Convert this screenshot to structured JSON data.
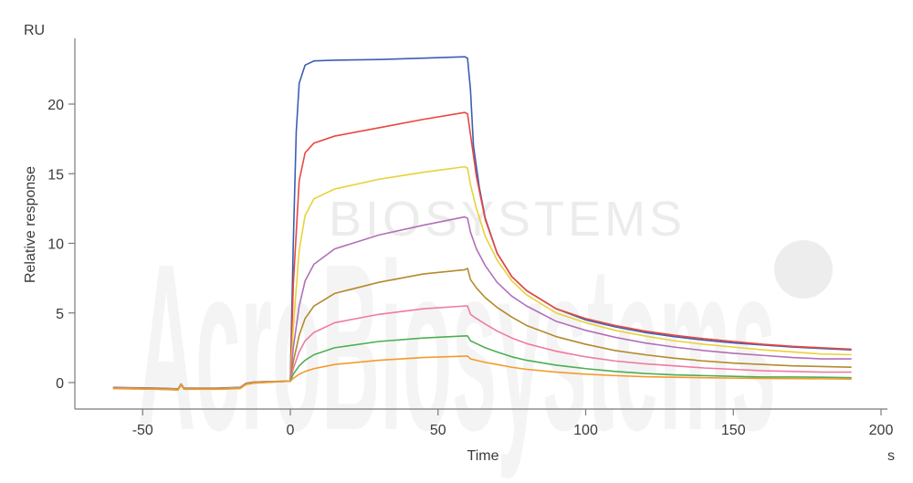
{
  "watermark": {
    "text": "BIOSYSTEMS",
    "logo_text": "AcroBiosystems"
  },
  "chart_data": {
    "type": "line",
    "title": "",
    "xlabel": "Time",
    "ylabel": "Relative response",
    "xunit": "s",
    "yunit": "RU",
    "xlim": [
      -60,
      200
    ],
    "ylim": [
      -0.5,
      24.5
    ],
    "xticks": [
      -50,
      0,
      50,
      100,
      150,
      200
    ],
    "yticks": [
      0,
      5,
      10,
      15,
      20
    ],
    "grid": false,
    "legend": "none",
    "baseline": [
      [
        -60,
        -0.35
      ],
      [
        -45,
        -0.4
      ],
      [
        -38,
        -0.45
      ],
      [
        -37,
        -0.1
      ],
      [
        -36,
        -0.4
      ],
      [
        -25,
        -0.4
      ],
      [
        -17,
        -0.35
      ],
      [
        -15,
        -0.05
      ],
      [
        -12,
        0.05
      ],
      [
        0,
        0.1
      ]
    ],
    "series": [
      {
        "color": "#3a5fb4",
        "values": [
          [
            0,
            0.1
          ],
          [
            1,
            10
          ],
          [
            2,
            18
          ],
          [
            3,
            21.5
          ],
          [
            5,
            22.8
          ],
          [
            8,
            23.1
          ],
          [
            15,
            23.15
          ],
          [
            30,
            23.2
          ],
          [
            45,
            23.3
          ],
          [
            59,
            23.4
          ],
          [
            60,
            23.3
          ],
          [
            61,
            21
          ],
          [
            62,
            17
          ],
          [
            64,
            14
          ],
          [
            66,
            11.8
          ],
          [
            70,
            9.3
          ],
          [
            75,
            7.6
          ],
          [
            80,
            6.6
          ],
          [
            90,
            5.3
          ],
          [
            100,
            4.5
          ],
          [
            110,
            4.0
          ],
          [
            120,
            3.6
          ],
          [
            130,
            3.3
          ],
          [
            140,
            3.05
          ],
          [
            150,
            2.85
          ],
          [
            160,
            2.7
          ],
          [
            170,
            2.55
          ],
          [
            180,
            2.45
          ],
          [
            190,
            2.35
          ]
        ]
      },
      {
        "color": "#e8473f",
        "values": [
          [
            0,
            0.1
          ],
          [
            1,
            7
          ],
          [
            3,
            14.5
          ],
          [
            5,
            16.5
          ],
          [
            8,
            17.2
          ],
          [
            15,
            17.7
          ],
          [
            30,
            18.3
          ],
          [
            45,
            18.9
          ],
          [
            59,
            19.4
          ],
          [
            60,
            19.3
          ],
          [
            61,
            17.8
          ],
          [
            63,
            14.8
          ],
          [
            66,
            11.7
          ],
          [
            70,
            9.3
          ],
          [
            75,
            7.6
          ],
          [
            80,
            6.6
          ],
          [
            90,
            5.3
          ],
          [
            100,
            4.6
          ],
          [
            110,
            4.1
          ],
          [
            120,
            3.7
          ],
          [
            130,
            3.4
          ],
          [
            140,
            3.15
          ],
          [
            150,
            2.95
          ],
          [
            160,
            2.75
          ],
          [
            170,
            2.6
          ],
          [
            180,
            2.5
          ],
          [
            190,
            2.4
          ]
        ]
      },
      {
        "color": "#e8d23a",
        "values": [
          [
            0,
            0.1
          ],
          [
            1,
            4
          ],
          [
            3,
            9.5
          ],
          [
            5,
            12
          ],
          [
            8,
            13.2
          ],
          [
            15,
            13.9
          ],
          [
            30,
            14.6
          ],
          [
            45,
            15.1
          ],
          [
            59,
            15.5
          ],
          [
            60,
            15.4
          ],
          [
            61,
            14.2
          ],
          [
            63,
            12.5
          ],
          [
            66,
            10.5
          ],
          [
            70,
            8.8
          ],
          [
            75,
            7.3
          ],
          [
            80,
            6.3
          ],
          [
            90,
            5.0
          ],
          [
            100,
            4.3
          ],
          [
            110,
            3.75
          ],
          [
            120,
            3.35
          ],
          [
            130,
            3.0
          ],
          [
            140,
            2.75
          ],
          [
            150,
            2.55
          ],
          [
            160,
            2.35
          ],
          [
            170,
            2.2
          ],
          [
            180,
            2.05
          ],
          [
            190,
            2.0
          ]
        ]
      },
      {
        "color": "#b070b8",
        "values": [
          [
            0,
            0.1
          ],
          [
            1,
            2.5
          ],
          [
            3,
            5.5
          ],
          [
            5,
            7.3
          ],
          [
            8,
            8.5
          ],
          [
            15,
            9.6
          ],
          [
            30,
            10.6
          ],
          [
            45,
            11.3
          ],
          [
            59,
            11.9
          ],
          [
            60,
            11.8
          ],
          [
            61,
            10.8
          ],
          [
            63,
            9.6
          ],
          [
            66,
            8.4
          ],
          [
            70,
            7.2
          ],
          [
            75,
            6.2
          ],
          [
            80,
            5.5
          ],
          [
            90,
            4.4
          ],
          [
            100,
            3.75
          ],
          [
            110,
            3.25
          ],
          [
            120,
            2.85
          ],
          [
            130,
            2.55
          ],
          [
            140,
            2.3
          ],
          [
            150,
            2.1
          ],
          [
            160,
            1.95
          ],
          [
            170,
            1.8
          ],
          [
            180,
            1.7
          ],
          [
            190,
            1.7
          ]
        ]
      },
      {
        "color": "#b48a2e",
        "values": [
          [
            0,
            0.1
          ],
          [
            1,
            1.5
          ],
          [
            3,
            3.4
          ],
          [
            5,
            4.6
          ],
          [
            8,
            5.5
          ],
          [
            15,
            6.4
          ],
          [
            30,
            7.2
          ],
          [
            45,
            7.8
          ],
          [
            59,
            8.1
          ],
          [
            60,
            8.2
          ],
          [
            61,
            7.4
          ],
          [
            63,
            6.8
          ],
          [
            66,
            6.1
          ],
          [
            70,
            5.4
          ],
          [
            75,
            4.7
          ],
          [
            80,
            4.1
          ],
          [
            90,
            3.3
          ],
          [
            100,
            2.75
          ],
          [
            110,
            2.3
          ],
          [
            120,
            2.0
          ],
          [
            130,
            1.75
          ],
          [
            140,
            1.55
          ],
          [
            150,
            1.4
          ],
          [
            160,
            1.3
          ],
          [
            170,
            1.2
          ],
          [
            180,
            1.15
          ],
          [
            190,
            1.1
          ]
        ]
      },
      {
        "color": "#f07aa2",
        "values": [
          [
            0,
            0.1
          ],
          [
            1,
            1.0
          ],
          [
            3,
            2.2
          ],
          [
            5,
            3.0
          ],
          [
            8,
            3.6
          ],
          [
            15,
            4.3
          ],
          [
            30,
            4.9
          ],
          [
            45,
            5.3
          ],
          [
            59,
            5.5
          ],
          [
            60,
            5.5
          ],
          [
            61,
            4.9
          ],
          [
            63,
            4.6
          ],
          [
            66,
            4.2
          ],
          [
            70,
            3.7
          ],
          [
            75,
            3.2
          ],
          [
            80,
            2.8
          ],
          [
            90,
            2.25
          ],
          [
            100,
            1.85
          ],
          [
            110,
            1.55
          ],
          [
            120,
            1.35
          ],
          [
            130,
            1.2
          ],
          [
            140,
            1.05
          ],
          [
            150,
            0.95
          ],
          [
            160,
            0.85
          ],
          [
            170,
            0.8
          ],
          [
            180,
            0.75
          ],
          [
            190,
            0.75
          ]
        ]
      },
      {
        "color": "#4caf50",
        "values": [
          [
            0,
            0.1
          ],
          [
            1,
            0.6
          ],
          [
            3,
            1.2
          ],
          [
            5,
            1.6
          ],
          [
            8,
            2.0
          ],
          [
            15,
            2.5
          ],
          [
            30,
            2.95
          ],
          [
            45,
            3.2
          ],
          [
            59,
            3.35
          ],
          [
            60,
            3.35
          ],
          [
            61,
            3.0
          ],
          [
            63,
            2.8
          ],
          [
            66,
            2.5
          ],
          [
            70,
            2.2
          ],
          [
            75,
            1.85
          ],
          [
            80,
            1.6
          ],
          [
            90,
            1.25
          ],
          [
            100,
            1.0
          ],
          [
            110,
            0.8
          ],
          [
            120,
            0.65
          ],
          [
            130,
            0.55
          ],
          [
            140,
            0.5
          ],
          [
            150,
            0.45
          ],
          [
            160,
            0.4
          ],
          [
            170,
            0.4
          ],
          [
            180,
            0.38
          ],
          [
            190,
            0.35
          ]
        ]
      },
      {
        "color": "#f59a2c",
        "values": [
          [
            0,
            0.1
          ],
          [
            1,
            0.3
          ],
          [
            3,
            0.6
          ],
          [
            5,
            0.8
          ],
          [
            8,
            1.0
          ],
          [
            15,
            1.3
          ],
          [
            30,
            1.6
          ],
          [
            45,
            1.8
          ],
          [
            59,
            1.9
          ],
          [
            60,
            1.9
          ],
          [
            61,
            1.7
          ],
          [
            63,
            1.6
          ],
          [
            66,
            1.45
          ],
          [
            70,
            1.3
          ],
          [
            75,
            1.1
          ],
          [
            80,
            0.95
          ],
          [
            90,
            0.75
          ],
          [
            100,
            0.6
          ],
          [
            110,
            0.5
          ],
          [
            120,
            0.42
          ],
          [
            130,
            0.38
          ],
          [
            140,
            0.35
          ],
          [
            150,
            0.32
          ],
          [
            160,
            0.3
          ],
          [
            170,
            0.28
          ],
          [
            180,
            0.27
          ],
          [
            190,
            0.25
          ]
        ]
      }
    ]
  }
}
